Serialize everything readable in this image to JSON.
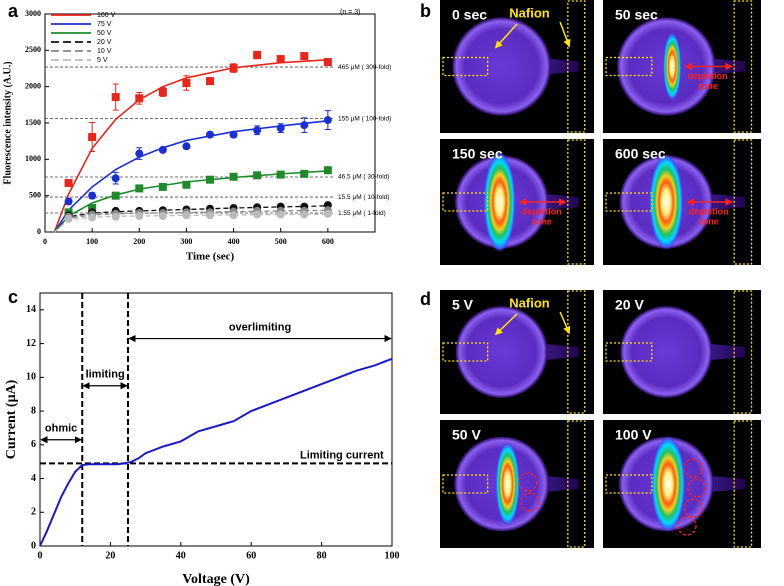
{
  "chart_data": [
    {
      "type": "scatter",
      "panel": "a",
      "note": "(n = 3)",
      "xlabel": "Time (sec)",
      "ylabel": "Fluorescence intensity (A.U.)",
      "xlim": [
        0,
        700
      ],
      "xticks": [
        0,
        100,
        200,
        300,
        400,
        500,
        600
      ],
      "ylim": [
        0,
        3000
      ],
      "yticks": [
        0,
        500,
        1000,
        1500,
        2000,
        2500,
        3000
      ],
      "x": [
        50,
        100,
        150,
        200,
        250,
        300,
        350,
        400,
        450,
        500,
        550,
        600
      ],
      "fit_x": [
        20,
        50,
        100,
        150,
        200,
        250,
        300,
        400,
        500,
        600
      ],
      "legend": "upper left",
      "refs": [
        {
          "value": 2270,
          "label": "465 μM ( 300-fold)"
        },
        {
          "value": 1560,
          "label": "155 μM ( 100-fold)"
        },
        {
          "value": 757,
          "label": "46.5 μM ( 30-fold)"
        },
        {
          "value": 481,
          "label": "15.5 μM ( 10-fold)"
        },
        {
          "value": 261,
          "label": "1.55 μM ( 1-fold)"
        }
      ],
      "series": [
        {
          "name": "100 V",
          "color": "#e8251b",
          "dash": false,
          "marker": "square",
          "values": [
            674,
            1307,
            1857,
            1840,
            1926,
            2050,
            2077,
            2256,
            2435,
            2380,
            2421,
            2339
          ],
          "errors": [
            40,
            200,
            180,
            80,
            60,
            100,
            40,
            60,
            50,
            30,
            30,
            40
          ],
          "fit": [
            0,
            520,
            1150,
            1550,
            1820,
            2000,
            2120,
            2260,
            2330,
            2370
          ]
        },
        {
          "name": "75 V",
          "color": "#1a2fd6",
          "dash": false,
          "marker": "circle",
          "values": [
            420,
            500,
            740,
            1080,
            1130,
            1180,
            1340,
            1340,
            1400,
            1430,
            1470,
            1540
          ],
          "errors": [
            40,
            40,
            80,
            80,
            30,
            30,
            30,
            40,
            60,
            60,
            100,
            130
          ],
          "fit": [
            0,
            300,
            620,
            860,
            1030,
            1160,
            1260,
            1380,
            1460,
            1530
          ]
        },
        {
          "name": "50 V",
          "color": "#1e8a2c",
          "dash": false,
          "marker": "square",
          "values": [
            270,
            330,
            500,
            600,
            620,
            650,
            720,
            760,
            780,
            790,
            800,
            850
          ],
          "errors": [
            30,
            30,
            30,
            40,
            30,
            30,
            30,
            30,
            30,
            30,
            30,
            30
          ],
          "fit": [
            0,
            220,
            400,
            510,
            590,
            640,
            690,
            750,
            800,
            840
          ]
        },
        {
          "name": "20 V",
          "color": "#111111",
          "dash": true,
          "marker": "circle",
          "values": [
            230,
            270,
            290,
            290,
            300,
            310,
            320,
            330,
            340,
            350,
            350,
            370
          ],
          "errors": [
            20,
            20,
            20,
            20,
            20,
            20,
            20,
            20,
            20,
            20,
            20,
            20
          ],
          "fit": [
            0,
            210,
            260,
            280,
            290,
            300,
            310,
            330,
            345,
            360
          ]
        },
        {
          "name": "10 V",
          "color": "#888888",
          "dash": true,
          "marker": "circle",
          "values": [
            210,
            240,
            250,
            260,
            260,
            270,
            270,
            280,
            290,
            290,
            290,
            300
          ],
          "errors": [
            20,
            20,
            20,
            20,
            20,
            20,
            20,
            20,
            20,
            20,
            20,
            20
          ],
          "fit": [
            0,
            190,
            235,
            250,
            258,
            262,
            268,
            280,
            290,
            298
          ]
        },
        {
          "name": "5 V",
          "color": "#bbbbbb",
          "dash": true,
          "marker": "circle",
          "values": [
            180,
            200,
            210,
            220,
            220,
            230,
            230,
            230,
            240,
            240,
            240,
            250
          ],
          "errors": [
            20,
            20,
            20,
            20,
            20,
            20,
            20,
            20,
            20,
            20,
            20,
            20
          ],
          "fit": [
            0,
            170,
            205,
            215,
            220,
            225,
            230,
            235,
            240,
            245
          ]
        }
      ]
    },
    {
      "type": "line",
      "panel": "c",
      "xlabel": "Voltage (V)",
      "ylabel": "Current (μA)",
      "color": "#1a1ac8",
      "xlim": [
        0,
        100
      ],
      "xticks": [
        0,
        20,
        40,
        60,
        80,
        100
      ],
      "ylim": [
        0,
        15
      ],
      "yticks": [
        0,
        2,
        4,
        6,
        8,
        10,
        12,
        14
      ],
      "x": [
        0,
        2,
        4,
        6,
        8,
        10,
        12,
        14,
        16,
        18,
        20,
        22,
        24,
        26,
        28,
        30,
        35,
        40,
        45,
        50,
        55,
        60,
        65,
        70,
        75,
        80,
        85,
        90,
        95,
        100
      ],
      "values": [
        0,
        0.9,
        1.9,
        2.9,
        3.7,
        4.4,
        4.8,
        4.85,
        4.85,
        4.85,
        4.85,
        4.85,
        4.9,
        5.0,
        5.2,
        5.5,
        5.9,
        6.2,
        6.8,
        7.1,
        7.4,
        8.0,
        8.4,
        8.8,
        9.2,
        9.6,
        10.0,
        10.4,
        10.7,
        11.1
      ],
      "vlines": [
        12,
        25
      ],
      "hline": {
        "value": 4.9,
        "label": "Limiting current"
      },
      "regions": [
        {
          "label": "ohmic",
          "from": 0,
          "to": 12,
          "y": 6.3
        },
        {
          "label": "limiting",
          "from": 12,
          "to": 25,
          "y": 9.5
        },
        {
          "label": "overlimiting",
          "from": 25,
          "to": 100,
          "y": 12.3
        }
      ]
    }
  ],
  "panel_b": {
    "letter": "b",
    "nafion": "Nafion",
    "images": [
      {
        "label": "0 sec"
      },
      {
        "label": "50 sec",
        "zone": [
          "depletion",
          "zone"
        ]
      },
      {
        "label": "150 sec",
        "zone": [
          "depletion",
          "zone"
        ]
      },
      {
        "label": "600 sec",
        "zone": [
          "depletion",
          "zone"
        ]
      }
    ]
  },
  "panel_d": {
    "letter": "d",
    "nafion": "Nafion",
    "images": [
      {
        "label": "5 V"
      },
      {
        "label": "20 V"
      },
      {
        "label": "50 V"
      },
      {
        "label": "100 V"
      }
    ]
  }
}
